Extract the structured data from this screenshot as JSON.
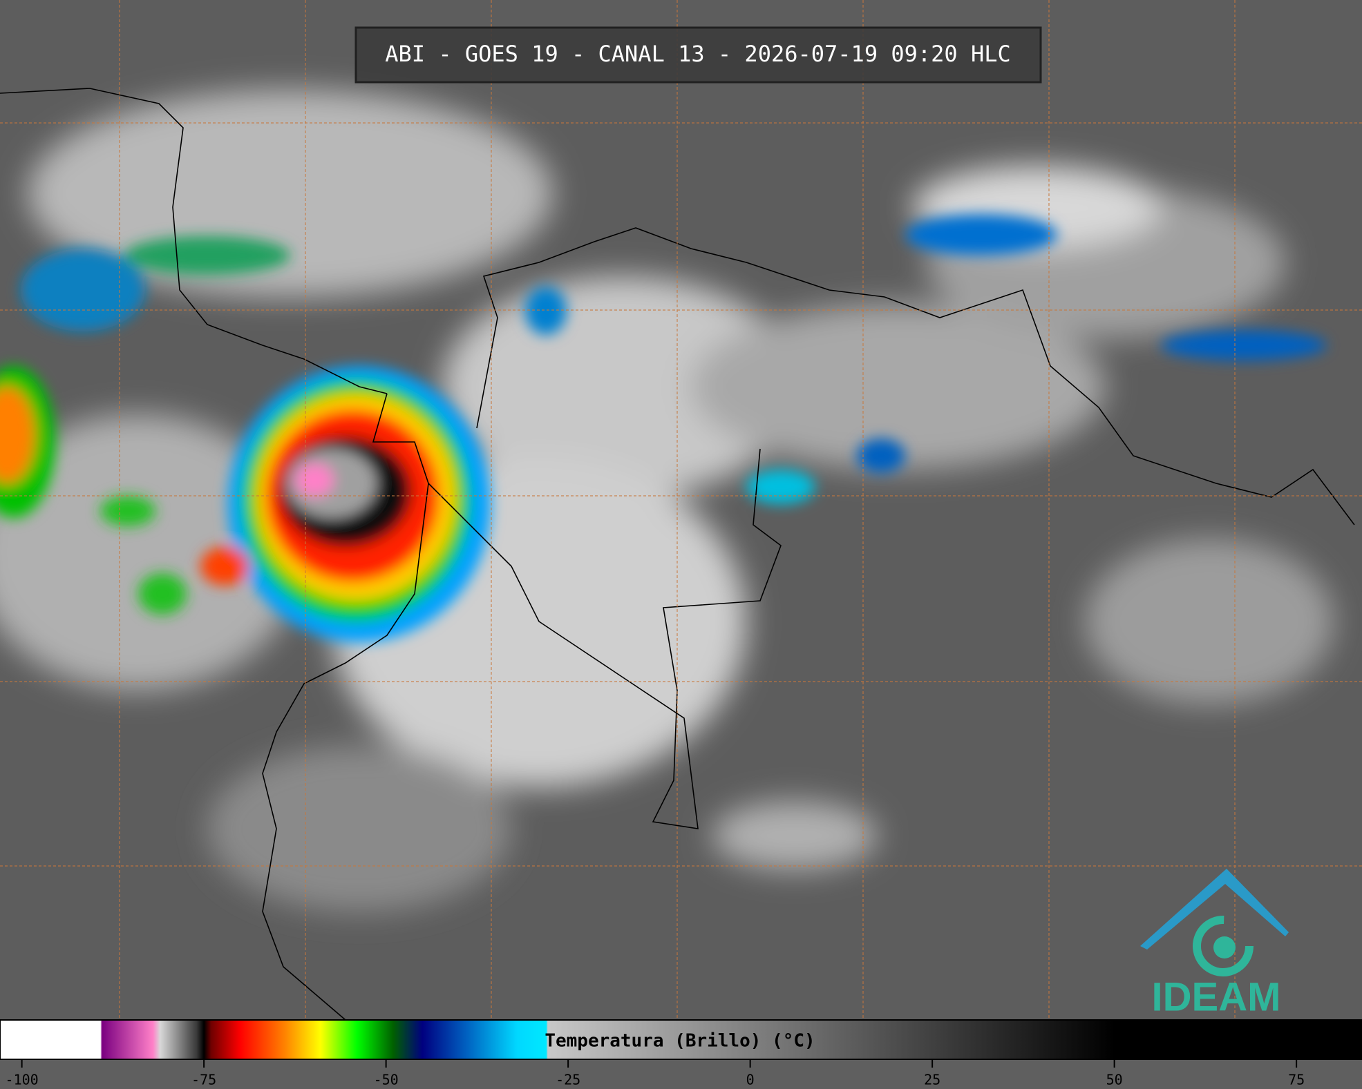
{
  "title": "ABI - GOES 19 - CANAL 13 - 2026-07-19 09:20 HLC",
  "logo": "IDEAM",
  "colorbar": {
    "label": "Temperatura (Brillo) (°C)",
    "lim": [
      -103,
      84
    ],
    "ticks": [
      -100,
      -75,
      -50,
      -25,
      0,
      25,
      50,
      75
    ],
    "stops": [
      {
        "value": -103,
        "color": "#ffffff"
      },
      {
        "value": -89.2,
        "color": "#ffffff"
      },
      {
        "value": -89,
        "color": "#7a0080"
      },
      {
        "value": -82,
        "color": "#ff80c8"
      },
      {
        "value": -81,
        "color": "#d8d8d8"
      },
      {
        "value": -76,
        "color": "#3a3a3a"
      },
      {
        "value": -75,
        "color": "#000000"
      },
      {
        "value": -74,
        "color": "#700000"
      },
      {
        "value": -70,
        "color": "#ff0000"
      },
      {
        "value": -64,
        "color": "#ff8000"
      },
      {
        "value": -59,
        "color": "#ffff00"
      },
      {
        "value": -54,
        "color": "#00ff00"
      },
      {
        "value": -49,
        "color": "#006000"
      },
      {
        "value": -45,
        "color": "#000080"
      },
      {
        "value": -39,
        "color": "#0060c0"
      },
      {
        "value": -32,
        "color": "#00d8ff"
      },
      {
        "value": -28,
        "color": "#00e8ff"
      },
      {
        "value": -27.8,
        "color": "#c8c8c8"
      },
      {
        "value": 50,
        "color": "#000000"
      },
      {
        "value": 84,
        "color": "#000000"
      }
    ]
  }
}
